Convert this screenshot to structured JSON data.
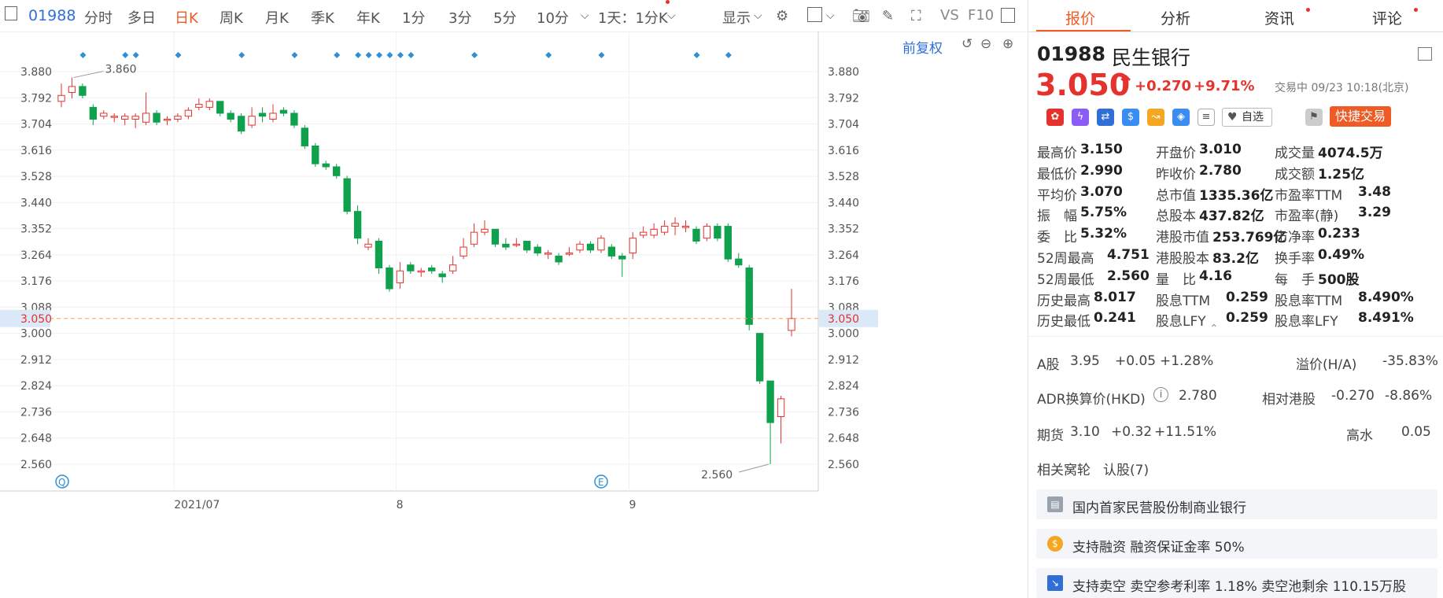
{
  "toolbar": {
    "code": "01988",
    "periods": [
      "分时",
      "多日",
      "日K",
      "周K",
      "月K",
      "季K",
      "年K",
      "1分",
      "3分",
      "5分",
      "10分"
    ],
    "active_period": "日K",
    "interval": "1天：1分K",
    "display": "显示",
    "vs": "VS",
    "f10": "F10",
    "restore": "前复权"
  },
  "chart_data": {
    "type": "candlestick",
    "y_ticks": [
      "3.880",
      "3.792",
      "3.704",
      "3.616",
      "3.528",
      "3.440",
      "3.352",
      "3.264",
      "3.176",
      "3.088",
      "3.000",
      "2.912",
      "2.824",
      "2.736",
      "2.648",
      "2.560"
    ],
    "ylim": [
      2.538,
      3.902
    ],
    "x_ticks": [
      {
        "label": "2021/07",
        "index": 11
      },
      {
        "label": "8",
        "index": 32
      },
      {
        "label": "9",
        "index": 54
      }
    ],
    "current_price": "3.050",
    "high_label": "3.860",
    "low_label": "2.560",
    "candles": [
      [
        3.78,
        3.8,
        3.76,
        3.84
      ],
      [
        3.81,
        3.83,
        3.79,
        3.86
      ],
      [
        3.83,
        3.8,
        3.79,
        3.84
      ],
      [
        3.76,
        3.72,
        3.7,
        3.77
      ],
      [
        3.73,
        3.74,
        3.72,
        3.75
      ],
      [
        3.73,
        3.73,
        3.71,
        3.74
      ],
      [
        3.72,
        3.73,
        3.7,
        3.74
      ],
      [
        3.72,
        3.73,
        3.69,
        3.74
      ],
      [
        3.71,
        3.74,
        3.7,
        3.81
      ],
      [
        3.74,
        3.71,
        3.7,
        3.75
      ],
      [
        3.72,
        3.72,
        3.7,
        3.73
      ],
      [
        3.72,
        3.73,
        3.71,
        3.74
      ],
      [
        3.73,
        3.75,
        3.72,
        3.76
      ],
      [
        3.76,
        3.77,
        3.75,
        3.79
      ],
      [
        3.76,
        3.78,
        3.75,
        3.79
      ],
      [
        3.78,
        3.74,
        3.73,
        3.78
      ],
      [
        3.74,
        3.72,
        3.71,
        3.75
      ],
      [
        3.73,
        3.68,
        3.67,
        3.74
      ],
      [
        3.7,
        3.73,
        3.69,
        3.76
      ],
      [
        3.74,
        3.73,
        3.71,
        3.76
      ],
      [
        3.72,
        3.74,
        3.71,
        3.77
      ],
      [
        3.75,
        3.74,
        3.73,
        3.76
      ],
      [
        3.74,
        3.7,
        3.69,
        3.75
      ],
      [
        3.69,
        3.63,
        3.62,
        3.7
      ],
      [
        3.63,
        3.57,
        3.56,
        3.64
      ],
      [
        3.57,
        3.56,
        3.55,
        3.58
      ],
      [
        3.56,
        3.53,
        3.52,
        3.57
      ],
      [
        3.52,
        3.41,
        3.4,
        3.53
      ],
      [
        3.41,
        3.32,
        3.3,
        3.43
      ],
      [
        3.29,
        3.3,
        3.28,
        3.32
      ],
      [
        3.31,
        3.22,
        3.2,
        3.32
      ],
      [
        3.22,
        3.15,
        3.14,
        3.23
      ],
      [
        3.17,
        3.21,
        3.15,
        3.24
      ],
      [
        3.23,
        3.21,
        3.2,
        3.24
      ],
      [
        3.21,
        3.21,
        3.19,
        3.22
      ],
      [
        3.22,
        3.21,
        3.2,
        3.23
      ],
      [
        3.2,
        3.19,
        3.17,
        3.21
      ],
      [
        3.21,
        3.23,
        3.2,
        3.26
      ],
      [
        3.26,
        3.29,
        3.25,
        3.32
      ],
      [
        3.3,
        3.34,
        3.29,
        3.37
      ],
      [
        3.34,
        3.35,
        3.33,
        3.38
      ],
      [
        3.35,
        3.3,
        3.29,
        3.35
      ],
      [
        3.3,
        3.29,
        3.28,
        3.32
      ],
      [
        3.3,
        3.3,
        3.29,
        3.32
      ],
      [
        3.31,
        3.28,
        3.27,
        3.31
      ],
      [
        3.29,
        3.27,
        3.26,
        3.3
      ],
      [
        3.27,
        3.27,
        3.25,
        3.28
      ],
      [
        3.26,
        3.24,
        3.23,
        3.27
      ],
      [
        3.27,
        3.27,
        3.26,
        3.29
      ],
      [
        3.28,
        3.3,
        3.27,
        3.31
      ],
      [
        3.3,
        3.28,
        3.27,
        3.31
      ],
      [
        3.28,
        3.32,
        3.27,
        3.33
      ],
      [
        3.29,
        3.26,
        3.25,
        3.3
      ],
      [
        3.26,
        3.25,
        3.19,
        3.27
      ],
      [
        3.27,
        3.32,
        3.25,
        3.34
      ],
      [
        3.33,
        3.34,
        3.32,
        3.36
      ],
      [
        3.33,
        3.35,
        3.32,
        3.37
      ],
      [
        3.34,
        3.36,
        3.33,
        3.38
      ],
      [
        3.36,
        3.37,
        3.33,
        3.39
      ],
      [
        3.36,
        3.36,
        3.34,
        3.38
      ],
      [
        3.35,
        3.31,
        3.3,
        3.36
      ],
      [
        3.32,
        3.36,
        3.31,
        3.37
      ],
      [
        3.36,
        3.32,
        3.31,
        3.37
      ],
      [
        3.36,
        3.25,
        3.24,
        3.37
      ],
      [
        3.25,
        3.23,
        3.22,
        3.27
      ],
      [
        3.22,
        3.03,
        3.01,
        3.23
      ],
      [
        3.0,
        2.84,
        2.83,
        3.0
      ],
      [
        2.84,
        2.7,
        2.56,
        2.84
      ],
      [
        2.72,
        2.78,
        2.63,
        2.79
      ],
      [
        3.01,
        3.05,
        2.99,
        3.15
      ]
    ],
    "event_markers": [
      1,
      5,
      6,
      10,
      16,
      21,
      25,
      27,
      28,
      29,
      30,
      31,
      32,
      38,
      45,
      50,
      59,
      62
    ]
  },
  "stock": {
    "code": "01988",
    "name": "民生银行",
    "price": "3.050",
    "change": "+0.270",
    "change_pct": "+9.71%",
    "status": "交易中 09/23 10:18(北京)",
    "watchlist": "自选",
    "quick_trade": "快捷交易"
  },
  "tabs": [
    {
      "label": "报价"
    },
    {
      "label": "分析"
    },
    {
      "label": "资讯"
    },
    {
      "label": "评论"
    }
  ],
  "quote_grid": [
    [
      {
        "l": "最高价",
        "v": "3.150",
        "c": "red"
      },
      {
        "l": "开盘价",
        "v": "3.010",
        "c": "red"
      },
      {
        "l": "成交量",
        "v": "4074.5万",
        "c": ""
      }
    ],
    [
      {
        "l": "最低价",
        "v": "2.990",
        "c": "red"
      },
      {
        "l": "昨收价",
        "v": "2.780",
        "c": ""
      },
      {
        "l": "成交额",
        "v": "1.25亿",
        "c": ""
      }
    ],
    [
      {
        "l": "平均价",
        "v": "3.070",
        "c": "red"
      },
      {
        "l": "总市值",
        "v": "1335.36亿",
        "c": ""
      },
      {
        "l": "市盈率TTM",
        "v": "3.48",
        "c": ""
      }
    ],
    [
      {
        "l": "振　幅",
        "v": "5.75%",
        "c": ""
      },
      {
        "l": "总股本",
        "v": "437.82亿",
        "c": ""
      },
      {
        "l": "市盈率(静)",
        "v": "3.29",
        "c": ""
      }
    ],
    [
      {
        "l": "委　比",
        "v": "5.32%",
        "c": ""
      },
      {
        "l": "港股市值",
        "v": "253.769亿",
        "c": ""
      },
      {
        "l": "市净率",
        "v": "0.233",
        "c": ""
      }
    ],
    [
      {
        "l": "52周最高",
        "v": "4.751",
        "c": "red"
      },
      {
        "l": "港股股本",
        "v": "83.2亿",
        "c": ""
      },
      {
        "l": "换手率",
        "v": "0.49%",
        "c": ""
      }
    ],
    [
      {
        "l": "52周最低",
        "v": "2.560",
        "c": "green"
      },
      {
        "l": "量　比",
        "v": "4.16",
        "c": ""
      },
      {
        "l": "每　手",
        "v": "500股",
        "c": ""
      }
    ],
    [
      {
        "l": "历史最高",
        "v": "8.017",
        "c": "red"
      },
      {
        "l": "股息TTM",
        "v": "0.259",
        "c": ""
      },
      {
        "l": "股息率TTM",
        "v": "8.490%",
        "c": ""
      }
    ],
    [
      {
        "l": "历史最低",
        "v": "0.241",
        "c": "green"
      },
      {
        "l": "股息LFY",
        "v": "0.259",
        "c": ""
      },
      {
        "l": "股息率LFY",
        "v": "8.491%",
        "c": ""
      }
    ]
  ],
  "ashare": {
    "label": "A股",
    "price": "3.95",
    "change": "+0.05",
    "pct": "+1.28%",
    "premium_label": "溢价(H/A)",
    "premium": "-35.83%"
  },
  "adr": {
    "label": "ADR换算价(HKD)",
    "price": "2.780",
    "rel_label": "相对港股",
    "rel_change": "-0.270",
    "rel_pct": "-8.86%"
  },
  "futures": {
    "label": "期货",
    "price": "3.10",
    "change": "+0.32",
    "pct": "+11.51%",
    "level_label": "高水",
    "level": "0.05"
  },
  "warrants": {
    "label": "相关窝轮",
    "link": "认股(7)"
  },
  "features": [
    {
      "text": "国内首家民营股份制商业银行",
      "icon": "book-icon"
    },
    {
      "text": "支持融资 融资保证金率 50%",
      "icon": "coin-icon"
    },
    {
      "text": "支持卖空 卖空参考利率 1.18% 卖空池剩余 110.15万股",
      "icon": "chart-down-icon"
    }
  ],
  "colors": {
    "up": "#e5322d",
    "down": "#0fa14d",
    "accent": "#f05a24",
    "link": "#2f6fd6"
  }
}
